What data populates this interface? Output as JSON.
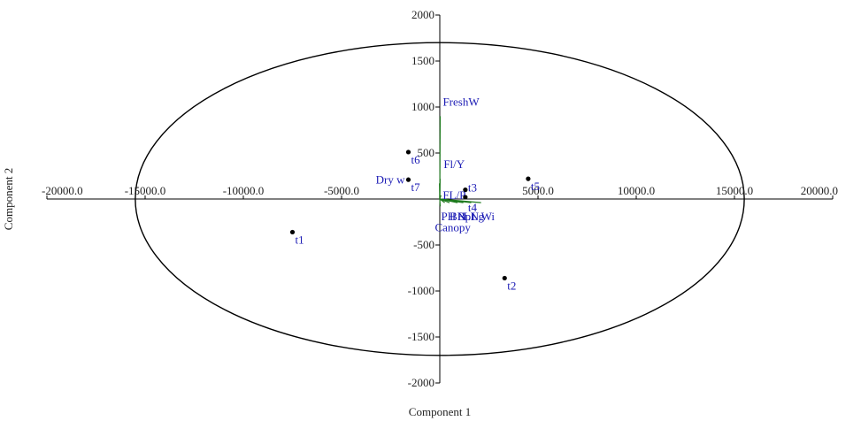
{
  "chart_data": {
    "type": "scatter",
    "title": "",
    "xlabel": "Component 1",
    "ylabel": "Component 2",
    "xlim": [
      -20000,
      20000
    ],
    "ylim": [
      -2000,
      2000
    ],
    "x_ticks": [
      "-20000.0",
      "-15000.0",
      "-10000.0",
      "-5000.0",
      "5000.0",
      "10000.0",
      "15000.0",
      "20000.0"
    ],
    "y_ticks": [
      "2000",
      "1500",
      "1000",
      "500",
      "-500",
      "-1000",
      "-1500",
      "-2000"
    ],
    "grid": false,
    "ellipse": {
      "rx": 15500,
      "ry": 1700
    },
    "observations": [
      {
        "label": "t1",
        "x": -7500,
        "y": -360
      },
      {
        "label": "t2",
        "x": 3300,
        "y": -860
      },
      {
        "label": "t3",
        "x": 1300,
        "y": 100
      },
      {
        "label": "t4",
        "x": 1300,
        "y": 20
      },
      {
        "label": "t5",
        "x": 4500,
        "y": 220
      },
      {
        "label": "t6",
        "x": -1600,
        "y": 510
      },
      {
        "label": "t7",
        "x": -1600,
        "y": 210
      }
    ],
    "variables": [
      {
        "label": "FreshW",
        "x": 20,
        "y": 900
      },
      {
        "label": "Fl/Y",
        "x": 15,
        "y": 220
      },
      {
        "label": "Dry w",
        "x": -15,
        "y": 170
      },
      {
        "label": "FL/P",
        "x": 60,
        "y": 40
      },
      {
        "label": "Canopy",
        "x": 20,
        "y": -80
      },
      {
        "label": "PH",
        "x": 250,
        "y": -40
      },
      {
        "label": "BN",
        "x": 500,
        "y": -40
      },
      {
        "label": "Bpl",
        "x": 900,
        "y": -40
      },
      {
        "label": "LN",
        "x": 1200,
        "y": -40
      },
      {
        "label": "Lg",
        "x": 1600,
        "y": -40
      },
      {
        "label": "Wi",
        "x": 2100,
        "y": -40
      }
    ],
    "colors": {
      "axis": "#000000",
      "ellipse": "#000000",
      "labels": "#1a1ab4",
      "vectors": "#1e7a1e",
      "points": "#000000"
    }
  }
}
